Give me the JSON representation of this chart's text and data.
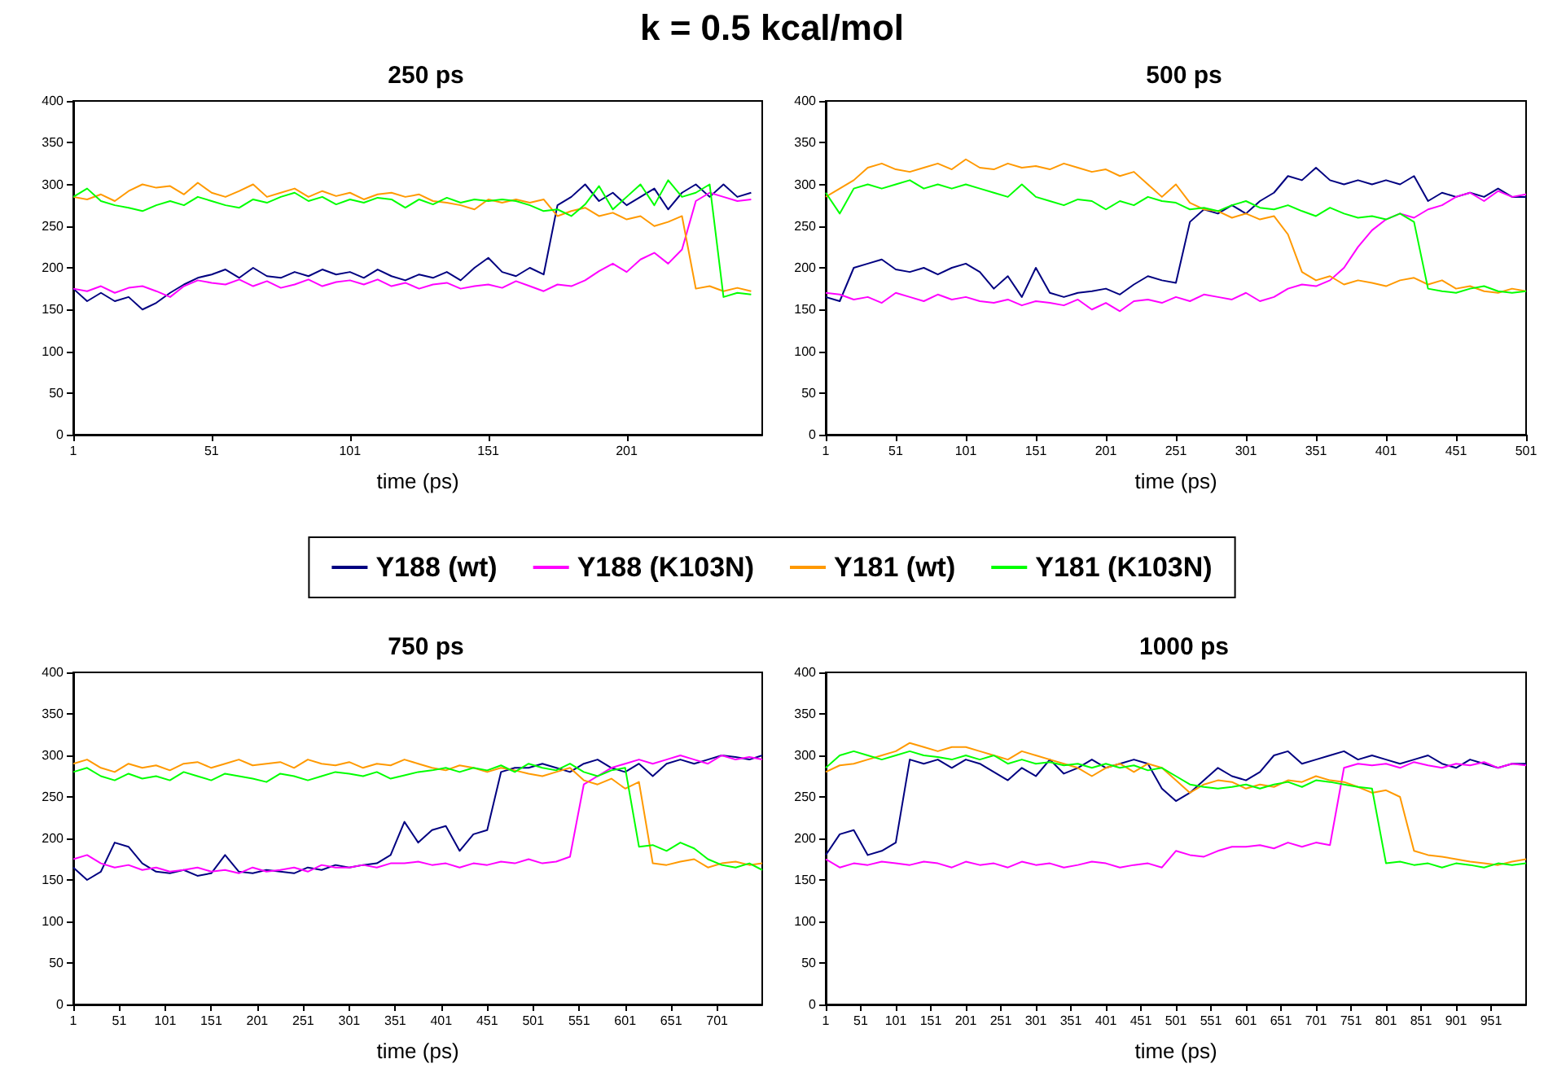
{
  "chart_data": [
    {
      "type": "line",
      "title": "250 ps",
      "xlabel": "time (ps)",
      "annotations": [
        "k = 0.5 kcal/mol"
      ],
      "legend": "bottom",
      "grid": false,
      "xlim": [
        1,
        250
      ],
      "xticks": [
        1,
        51,
        101,
        151,
        201
      ],
      "ylim": [
        0,
        400
      ],
      "yticks": [
        0,
        50,
        100,
        150,
        200,
        250,
        300,
        350,
        400
      ],
      "x": [
        1,
        6,
        11,
        16,
        21,
        26,
        31,
        36,
        41,
        46,
        51,
        56,
        61,
        66,
        71,
        76,
        81,
        86,
        91,
        96,
        101,
        106,
        111,
        116,
        121,
        126,
        131,
        136,
        141,
        146,
        151,
        156,
        161,
        166,
        171,
        176,
        181,
        186,
        191,
        196,
        201,
        206,
        211,
        216,
        221,
        226,
        231,
        236,
        241,
        246
      ],
      "series": [
        {
          "name": "Y188 (wt)",
          "color": "#000080",
          "values": [
            175,
            160,
            170,
            160,
            165,
            150,
            158,
            170,
            180,
            188,
            192,
            198,
            188,
            200,
            190,
            188,
            195,
            190,
            198,
            192,
            195,
            188,
            198,
            190,
            185,
            192,
            188,
            195,
            185,
            200,
            212,
            195,
            190,
            200,
            192,
            275,
            285,
            300,
            280,
            290,
            275,
            285,
            295,
            270,
            290,
            300,
            285,
            300,
            285,
            290
          ]
        },
        {
          "name": "Y188 (K103N)",
          "color": "#ff00ff",
          "values": [
            175,
            172,
            178,
            170,
            176,
            178,
            172,
            165,
            178,
            185,
            182,
            180,
            186,
            178,
            184,
            176,
            180,
            186,
            178,
            183,
            185,
            180,
            186,
            178,
            182,
            175,
            180,
            182,
            175,
            178,
            180,
            176,
            184,
            178,
            172,
            180,
            178,
            185,
            196,
            205,
            195,
            210,
            218,
            205,
            222,
            280,
            290,
            285,
            280,
            282
          ]
        },
        {
          "name": "Y181 (wt)",
          "color": "#ff9900",
          "values": [
            285,
            282,
            288,
            280,
            292,
            300,
            296,
            298,
            288,
            302,
            290,
            285,
            292,
            300,
            285,
            290,
            295,
            285,
            292,
            286,
            290,
            282,
            288,
            290,
            285,
            288,
            280,
            278,
            275,
            270,
            282,
            278,
            282,
            278,
            282,
            262,
            268,
            272,
            262,
            266,
            258,
            262,
            250,
            255,
            262,
            175,
            178,
            172,
            176,
            172
          ]
        },
        {
          "name": "Y181 (K103N)",
          "color": "#00ff00",
          "values": [
            285,
            295,
            280,
            275,
            272,
            268,
            275,
            280,
            275,
            285,
            280,
            275,
            272,
            282,
            278,
            285,
            290,
            280,
            285,
            276,
            282,
            278,
            284,
            282,
            272,
            282,
            276,
            284,
            278,
            282,
            280,
            282,
            280,
            275,
            268,
            270,
            262,
            276,
            298,
            270,
            285,
            300,
            275,
            305,
            285,
            290,
            300,
            165,
            170,
            168
          ]
        }
      ]
    },
    {
      "type": "line",
      "title": "500 ps",
      "xlabel": "time (ps)",
      "grid": false,
      "xlim": [
        1,
        501
      ],
      "xticks": [
        1,
        51,
        101,
        151,
        201,
        251,
        301,
        351,
        401,
        451,
        501
      ],
      "ylim": [
        0,
        400
      ],
      "yticks": [
        0,
        50,
        100,
        150,
        200,
        250,
        300,
        350,
        400
      ],
      "x": [
        1,
        11,
        21,
        31,
        41,
        51,
        61,
        71,
        81,
        91,
        101,
        111,
        121,
        131,
        141,
        151,
        161,
        171,
        181,
        191,
        201,
        211,
        221,
        231,
        241,
        251,
        261,
        271,
        281,
        291,
        301,
        311,
        321,
        331,
        341,
        351,
        361,
        371,
        381,
        391,
        401,
        411,
        421,
        431,
        441,
        451,
        461,
        471,
        481,
        491,
        501
      ],
      "series": [
        {
          "color": "#000080",
          "values": [
            165,
            160,
            200,
            205,
            210,
            198,
            195,
            200,
            192,
            200,
            205,
            195,
            175,
            190,
            165,
            200,
            170,
            165,
            170,
            172,
            175,
            168,
            180,
            190,
            185,
            182,
            255,
            270,
            265,
            275,
            265,
            280,
            290,
            310,
            305,
            320,
            305,
            300,
            305,
            300,
            305,
            300,
            310,
            280,
            290,
            285,
            290,
            285,
            295,
            285,
            285
          ]
        },
        {
          "color": "#ff00ff",
          "values": [
            170,
            168,
            162,
            165,
            158,
            170,
            165,
            160,
            168,
            162,
            165,
            160,
            158,
            162,
            155,
            160,
            158,
            155,
            162,
            150,
            158,
            148,
            160,
            162,
            158,
            165,
            160,
            168,
            165,
            162,
            170,
            160,
            165,
            175,
            180,
            178,
            185,
            200,
            225,
            245,
            258,
            265,
            260,
            270,
            275,
            285,
            290,
            280,
            292,
            285,
            288
          ]
        },
        {
          "color": "#ff9900",
          "values": [
            285,
            295,
            305,
            320,
            325,
            318,
            315,
            320,
            325,
            318,
            330,
            320,
            318,
            325,
            320,
            322,
            318,
            325,
            320,
            315,
            318,
            310,
            315,
            300,
            285,
            300,
            278,
            270,
            268,
            260,
            265,
            258,
            262,
            240,
            195,
            185,
            190,
            180,
            185,
            182,
            178,
            185,
            188,
            180,
            185,
            175,
            178,
            172,
            170,
            175,
            172
          ]
        },
        {
          "color": "#00ff00",
          "values": [
            290,
            265,
            295,
            300,
            295,
            300,
            305,
            295,
            300,
            295,
            300,
            295,
            290,
            285,
            300,
            285,
            280,
            275,
            282,
            280,
            270,
            280,
            275,
            285,
            280,
            278,
            270,
            272,
            268,
            275,
            280,
            272,
            270,
            275,
            268,
            262,
            272,
            265,
            260,
            262,
            258,
            265,
            255,
            175,
            172,
            170,
            175,
            178,
            172,
            170,
            172
          ]
        }
      ]
    },
    {
      "type": "line",
      "title": "750 ps",
      "xlabel": "time (ps)",
      "grid": false,
      "xlim": [
        1,
        750
      ],
      "xticks": [
        1,
        51,
        101,
        151,
        201,
        251,
        301,
        351,
        401,
        451,
        501,
        551,
        601,
        651,
        701
      ],
      "ylim": [
        0,
        400
      ],
      "yticks": [
        0,
        50,
        100,
        150,
        200,
        250,
        300,
        350,
        400
      ],
      "x": [
        1,
        16,
        31,
        46,
        61,
        76,
        91,
        106,
        121,
        136,
        151,
        166,
        181,
        196,
        211,
        226,
        241,
        256,
        271,
        286,
        301,
        316,
        331,
        346,
        361,
        376,
        391,
        406,
        421,
        436,
        451,
        466,
        481,
        496,
        511,
        526,
        541,
        556,
        571,
        586,
        601,
        616,
        631,
        646,
        661,
        676,
        691,
        706,
        721,
        736,
        750
      ],
      "series": [
        {
          "color": "#000080",
          "values": [
            165,
            150,
            160,
            195,
            190,
            170,
            160,
            158,
            162,
            155,
            158,
            180,
            160,
            158,
            162,
            160,
            158,
            165,
            162,
            168,
            165,
            168,
            170,
            180,
            220,
            195,
            210,
            215,
            185,
            205,
            210,
            280,
            285,
            285,
            290,
            285,
            280,
            290,
            295,
            285,
            280,
            290,
            275,
            290,
            295,
            290,
            295,
            300,
            298,
            295,
            300
          ]
        },
        {
          "color": "#ff00ff",
          "values": [
            175,
            180,
            170,
            165,
            168,
            162,
            165,
            160,
            162,
            165,
            160,
            162,
            158,
            165,
            160,
            162,
            165,
            160,
            168,
            165,
            165,
            168,
            165,
            170,
            170,
            172,
            168,
            170,
            165,
            170,
            168,
            172,
            170,
            175,
            170,
            172,
            178,
            265,
            275,
            285,
            290,
            295,
            290,
            295,
            300,
            295,
            290,
            300,
            295,
            298,
            295
          ]
        },
        {
          "color": "#ff9900",
          "values": [
            290,
            295,
            285,
            280,
            290,
            285,
            288,
            282,
            290,
            292,
            285,
            290,
            295,
            288,
            290,
            292,
            285,
            295,
            290,
            288,
            292,
            285,
            290,
            288,
            295,
            290,
            285,
            282,
            288,
            285,
            280,
            285,
            282,
            278,
            275,
            280,
            285,
            270,
            265,
            272,
            260,
            268,
            170,
            168,
            172,
            175,
            165,
            170,
            172,
            168,
            170
          ]
        },
        {
          "color": "#00ff00",
          "values": [
            280,
            285,
            275,
            270,
            278,
            272,
            275,
            270,
            280,
            275,
            270,
            278,
            275,
            272,
            268,
            278,
            275,
            270,
            275,
            280,
            278,
            275,
            280,
            272,
            276,
            280,
            282,
            285,
            280,
            285,
            282,
            288,
            280,
            290,
            285,
            282,
            290,
            280,
            275,
            282,
            285,
            190,
            192,
            185,
            195,
            188,
            175,
            168,
            165,
            170,
            162
          ]
        }
      ]
    },
    {
      "type": "line",
      "title": "1000 ps",
      "xlabel": "time (ps)",
      "grid": false,
      "xlim": [
        1,
        1001
      ],
      "xticks": [
        1,
        51,
        101,
        151,
        201,
        251,
        301,
        351,
        401,
        451,
        501,
        551,
        601,
        651,
        701,
        751,
        801,
        851,
        901,
        951
      ],
      "ylim": [
        0,
        400
      ],
      "yticks": [
        0,
        50,
        100,
        150,
        200,
        250,
        300,
        350,
        400
      ],
      "x": [
        1,
        21,
        41,
        61,
        81,
        101,
        121,
        141,
        161,
        181,
        201,
        221,
        241,
        261,
        281,
        301,
        321,
        341,
        361,
        381,
        401,
        421,
        441,
        461,
        481,
        501,
        521,
        541,
        561,
        581,
        601,
        621,
        641,
        661,
        681,
        701,
        721,
        741,
        761,
        781,
        801,
        821,
        841,
        861,
        881,
        901,
        921,
        941,
        961,
        981,
        1001
      ],
      "series": [
        {
          "color": "#000080",
          "values": [
            180,
            205,
            210,
            180,
            185,
            195,
            295,
            290,
            295,
            285,
            295,
            290,
            280,
            270,
            285,
            275,
            295,
            278,
            285,
            295,
            285,
            290,
            295,
            290,
            260,
            245,
            255,
            270,
            285,
            275,
            270,
            280,
            300,
            305,
            290,
            295,
            300,
            305,
            295,
            300,
            295,
            290,
            295,
            300,
            290,
            285,
            295,
            290,
            285,
            290,
            290
          ]
        },
        {
          "color": "#ff00ff",
          "values": [
            175,
            165,
            170,
            168,
            172,
            170,
            168,
            172,
            170,
            165,
            172,
            168,
            170,
            165,
            172,
            168,
            170,
            165,
            168,
            172,
            170,
            165,
            168,
            170,
            165,
            185,
            180,
            178,
            185,
            190,
            190,
            192,
            188,
            195,
            190,
            195,
            192,
            285,
            290,
            288,
            290,
            285,
            292,
            288,
            285,
            290,
            288,
            292,
            285,
            290,
            288
          ]
        },
        {
          "color": "#ff9900",
          "values": [
            280,
            288,
            290,
            295,
            300,
            305,
            315,
            310,
            305,
            310,
            310,
            305,
            300,
            295,
            305,
            300,
            295,
            290,
            285,
            275,
            285,
            290,
            280,
            290,
            285,
            270,
            255,
            265,
            270,
            268,
            260,
            265,
            262,
            270,
            268,
            275,
            270,
            268,
            262,
            255,
            258,
            250,
            185,
            180,
            178,
            175,
            172,
            170,
            168,
            172,
            175
          ]
        },
        {
          "color": "#00ff00",
          "values": [
            285,
            300,
            305,
            300,
            295,
            300,
            305,
            300,
            298,
            295,
            300,
            295,
            300,
            290,
            295,
            290,
            292,
            288,
            290,
            285,
            290,
            285,
            288,
            282,
            285,
            275,
            265,
            262,
            260,
            262,
            265,
            260,
            265,
            268,
            262,
            270,
            268,
            265,
            262,
            260,
            170,
            172,
            168,
            170,
            165,
            170,
            168,
            165,
            170,
            168,
            170
          ]
        }
      ]
    }
  ]
}
